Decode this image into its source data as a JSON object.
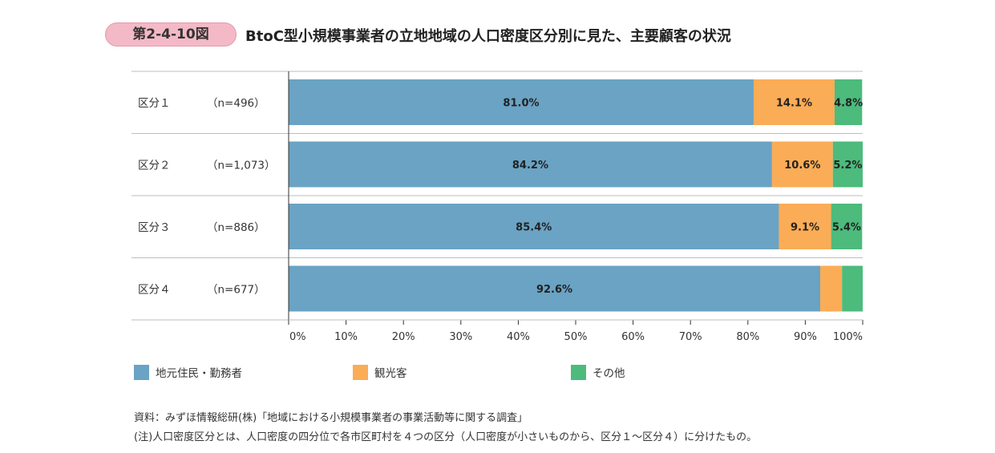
{
  "figure": {
    "number": "第2-4-10図",
    "title": "BtoC型小規模事業者の立地地域の人口密度区分別に見た、主要顧客の状況"
  },
  "chart_data": {
    "type": "bar",
    "orientation": "horizontal",
    "stacked": true,
    "categories": [
      "区分１",
      "区分２",
      "区分３",
      "区分４"
    ],
    "sample_sizes": [
      "（n=496）",
      "（n=1,073）",
      "（n=886）",
      "（n=677）"
    ],
    "series": [
      {
        "name": "地元住民・勤務者",
        "color": "#6aa3c4",
        "values": [
          81.0,
          84.2,
          85.4,
          92.6
        ],
        "labels": [
          "81.0%",
          "84.2%",
          "85.4%",
          "92.6%"
        ]
      },
      {
        "name": "観光客",
        "color": "#fbac56",
        "values": [
          14.1,
          10.6,
          9.1,
          3.8
        ],
        "labels": [
          "14.1%",
          "10.6%",
          "9.1%",
          ""
        ]
      },
      {
        "name": "その他",
        "color": "#4cbb7c",
        "values": [
          4.8,
          5.2,
          5.4,
          3.6
        ],
        "labels": [
          "4.8%",
          "5.2%",
          "5.4%",
          ""
        ]
      }
    ],
    "xlim": [
      0,
      100
    ],
    "x_ticks": [
      "0%",
      "10%",
      "20%",
      "30%",
      "40%",
      "50%",
      "60%",
      "70%",
      "80%",
      "90%",
      "100%"
    ],
    "grid": false,
    "legend_position": "bottom"
  },
  "notes": {
    "source": "資料：みずほ情報総研(株)「地域における小規模事業者の事業活動等に関する調査」",
    "note": "(注)人口密度区分とは、人口密度の四分位で各市区町村を４つの区分（人口密度が小さいものから、区分１～区分４）に分けたもの。"
  }
}
